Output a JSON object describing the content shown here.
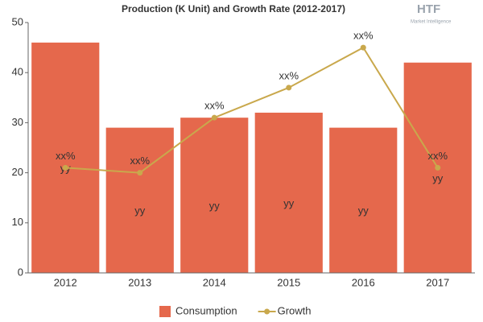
{
  "chart_data": {
    "type": "combo",
    "title": "Production (K Unit) and Growth Rate (2012-2017)",
    "logo": {
      "title": "HTF",
      "subtitle": "Market Intelligence"
    },
    "categories": [
      "2012",
      "2013",
      "2014",
      "2015",
      "2016",
      "2017"
    ],
    "series": [
      {
        "name": "Consumption",
        "type": "bar",
        "color": "#e5684c",
        "values": [
          46,
          29,
          31,
          32,
          29,
          42
        ],
        "value_labels": [
          "yy",
          "yy",
          "yy",
          "yy",
          "yy",
          "yy"
        ]
      },
      {
        "name": "Growth",
        "type": "line",
        "color": "#c9a84c",
        "values": [
          21,
          20,
          31,
          37,
          45,
          21
        ],
        "value_labels": [
          "xx%",
          "xx%",
          "xx%",
          "xx%",
          "xx%",
          "xx%"
        ]
      }
    ],
    "ylim": [
      0,
      50
    ],
    "yticks": [
      0,
      10,
      20,
      30,
      40,
      50
    ],
    "grid": false,
    "legend": "bottom"
  }
}
